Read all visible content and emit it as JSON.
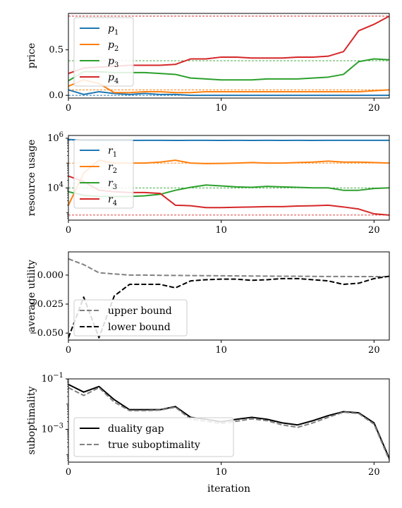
{
  "colors": {
    "c1": "#1f77b4",
    "c2": "#ff7f0e",
    "c3": "#2ca02c",
    "c4": "#d62728",
    "gray": "#808080",
    "black": "#000000"
  },
  "xlabel": "iteration",
  "chart_data": [
    {
      "type": "line",
      "ylabel": "price",
      "xlim": [
        0,
        21
      ],
      "ylim": [
        -0.03,
        0.9
      ],
      "xticks": [
        0,
        10,
        20
      ],
      "xtick_labels": [
        "0",
        "10",
        "20"
      ],
      "yticks": [
        0.0,
        0.5
      ],
      "ytick_labels": [
        "0.0",
        "0.5"
      ],
      "legend": "upper-left",
      "series": [
        {
          "name": "p1",
          "legend_base": "p",
          "legend_sub": "1",
          "color": "#1f77b4",
          "x": [
            0,
            1,
            2,
            3,
            4,
            5,
            6,
            7,
            8,
            9,
            10,
            11,
            12,
            13,
            14,
            15,
            16,
            17,
            18,
            19,
            20,
            21
          ],
          "y": [
            0.06,
            0.01,
            0.04,
            0.02,
            0.01,
            0.02,
            0.01,
            0.01,
            0.0,
            0.0,
            0.0,
            0.0,
            0.0,
            0.0,
            0.0,
            0.0,
            0.0,
            0.0,
            0.0,
            0.0,
            0.0,
            0.0
          ],
          "ref": 0.0
        },
        {
          "name": "p2",
          "legend_base": "p",
          "legend_sub": "2",
          "color": "#ff7f0e",
          "x": [
            0,
            1,
            2,
            3,
            4,
            5,
            6,
            7,
            8,
            9,
            10,
            11,
            12,
            13,
            14,
            15,
            16,
            17,
            18,
            19,
            20,
            21
          ],
          "y": [
            0.1,
            0.17,
            0.13,
            0.03,
            0.03,
            0.04,
            0.04,
            0.03,
            0.03,
            0.04,
            0.04,
            0.04,
            0.04,
            0.04,
            0.04,
            0.04,
            0.04,
            0.04,
            0.04,
            0.04,
            0.05,
            0.06
          ],
          "ref": 0.06
        },
        {
          "name": "p3",
          "legend_base": "p",
          "legend_sub": "3",
          "color": "#2ca02c",
          "x": [
            0,
            1,
            2,
            3,
            4,
            5,
            6,
            7,
            8,
            9,
            10,
            11,
            12,
            13,
            14,
            15,
            16,
            17,
            18,
            19,
            20,
            21
          ],
          "y": [
            0.16,
            0.26,
            0.26,
            0.25,
            0.25,
            0.25,
            0.24,
            0.23,
            0.19,
            0.18,
            0.17,
            0.17,
            0.17,
            0.18,
            0.18,
            0.18,
            0.19,
            0.2,
            0.23,
            0.37,
            0.4,
            0.39
          ],
          "ref": 0.38
        },
        {
          "name": "p4",
          "legend_base": "p",
          "legend_sub": "4",
          "color": "#d62728",
          "x": [
            0,
            1,
            2,
            3,
            4,
            5,
            6,
            7,
            8,
            9,
            10,
            11,
            12,
            13,
            14,
            15,
            16,
            17,
            18,
            19,
            20,
            21
          ],
          "y": [
            0.24,
            0.3,
            0.31,
            0.32,
            0.33,
            0.33,
            0.33,
            0.34,
            0.4,
            0.4,
            0.42,
            0.42,
            0.41,
            0.41,
            0.41,
            0.42,
            0.42,
            0.43,
            0.48,
            0.71,
            0.78,
            0.87
          ],
          "ref": 0.87
        }
      ]
    },
    {
      "type": "line",
      "ylabel": "resource usage",
      "yscale": "log",
      "xlim": [
        0,
        21
      ],
      "ylim": [
        500,
        1300000
      ],
      "xticks": [
        0,
        10,
        20
      ],
      "xtick_labels": [
        "0",
        "10",
        "20"
      ],
      "yticks": [
        10000,
        1000000
      ],
      "ytick_base": "10",
      "ytick_exps": [
        "4",
        "6"
      ],
      "legend": "upper-left",
      "series": [
        {
          "name": "r1",
          "legend_base": "r",
          "legend_sub": "1",
          "color": "#1f77b4",
          "x": [
            0,
            1,
            2,
            3,
            4,
            5,
            6,
            7,
            8,
            9,
            10,
            11,
            12,
            13,
            14,
            15,
            16,
            17,
            18,
            19,
            20,
            21
          ],
          "y": [
            900000,
            830000,
            820000,
            830000,
            820000,
            830000,
            830000,
            820000,
            830000,
            830000,
            820000,
            830000,
            820000,
            830000,
            820000,
            830000,
            820000,
            830000,
            830000,
            830000,
            830000,
            830000
          ],
          "ref": 830000
        },
        {
          "name": "r2",
          "legend_base": "r",
          "legend_sub": "2",
          "color": "#ff7f0e",
          "x": [
            0,
            1,
            2,
            3,
            4,
            5,
            6,
            7,
            8,
            9,
            10,
            11,
            12,
            13,
            14,
            15,
            16,
            17,
            18,
            19,
            20,
            21
          ],
          "y": [
            2000,
            40000,
            130000,
            100000,
            100000,
            100000,
            110000,
            130000,
            100000,
            95000,
            97000,
            100000,
            105000,
            100000,
            100000,
            105000,
            110000,
            120000,
            110000,
            110000,
            105000,
            100000
          ],
          "ref": 100000
        },
        {
          "name": "r3",
          "legend_base": "r",
          "legend_sub": "3",
          "color": "#2ca02c",
          "x": [
            0,
            1,
            2,
            3,
            4,
            5,
            6,
            7,
            8,
            9,
            10,
            11,
            12,
            13,
            14,
            15,
            16,
            17,
            18,
            19,
            20,
            21
          ],
          "y": [
            7000,
            5000,
            4500,
            4500,
            4500,
            4800,
            5500,
            8000,
            10500,
            13000,
            12000,
            11000,
            10500,
            11500,
            11000,
            10500,
            10000,
            10000,
            8000,
            8000,
            9500,
            10000
          ],
          "ref": 10000
        },
        {
          "name": "r4",
          "legend_base": "r",
          "legend_sub": "4",
          "color": "#d62728",
          "x": [
            0,
            1,
            2,
            3,
            4,
            5,
            6,
            7,
            8,
            9,
            10,
            11,
            12,
            13,
            14,
            15,
            16,
            17,
            18,
            19,
            20,
            21
          ],
          "y": [
            30000,
            18000,
            8000,
            7000,
            6500,
            6500,
            6000,
            2000,
            1900,
            1600,
            1600,
            1650,
            1700,
            1750,
            1750,
            1850,
            1900,
            2000,
            1700,
            1400,
            900,
            800
          ],
          "ref": 800
        }
      ]
    },
    {
      "type": "line",
      "ylabel": "average utility",
      "xlim": [
        0,
        21
      ],
      "ylim": [
        -0.056,
        0.02
      ],
      "xticks": [
        0,
        10,
        20
      ],
      "xtick_labels": [
        "0",
        "10",
        "20"
      ],
      "yticks": [
        0.0,
        -0.025,
        -0.05
      ],
      "ytick_labels": [
        "0.000",
        "−0.025",
        "−0.050"
      ],
      "legend": "lower-left",
      "series": [
        {
          "name": "upper bound",
          "color": "#808080",
          "x": [
            0,
            1,
            2,
            3,
            4,
            5,
            6,
            7,
            8,
            9,
            10,
            11,
            12,
            13,
            14,
            15,
            16,
            17,
            18,
            19,
            20,
            21
          ],
          "y": [
            0.014,
            0.009,
            0.002,
            0.001,
            0.0,
            0.0,
            -0.0002,
            -0.0003,
            -0.0004,
            -0.0005,
            -0.0006,
            -0.0007,
            -0.0008,
            -0.0009,
            -0.001,
            -0.001,
            -0.0011,
            -0.0012,
            -0.0012,
            -0.0013,
            -0.0013,
            -0.0013
          ]
        },
        {
          "name": "lower bound",
          "color": "#000000",
          "x": [
            0,
            1,
            2,
            3,
            4,
            5,
            6,
            7,
            8,
            9,
            10,
            11,
            12,
            13,
            14,
            15,
            16,
            17,
            18,
            19,
            20,
            21
          ],
          "y": [
            -0.054,
            -0.019,
            -0.054,
            -0.018,
            -0.008,
            -0.008,
            -0.008,
            -0.011,
            -0.005,
            -0.004,
            -0.0035,
            -0.0035,
            -0.0045,
            -0.004,
            -0.003,
            -0.003,
            -0.004,
            -0.005,
            -0.008,
            -0.007,
            -0.003,
            -0.001
          ]
        }
      ]
    },
    {
      "type": "line",
      "ylabel": "suboptimality",
      "yscale": "log",
      "xlim": [
        0,
        21
      ],
      "ylim": [
        5e-05,
        0.1
      ],
      "xticks": [
        0,
        10,
        20
      ],
      "xtick_labels": [
        "0",
        "10",
        "20"
      ],
      "yticks": [
        0.001,
        0.1
      ],
      "ytick_base": "10",
      "ytick_exps": [
        "−3",
        "−1"
      ],
      "legend": "lower-left",
      "series": [
        {
          "name": "duality gap",
          "color": "#000000",
          "x": [
            0,
            1,
            2,
            3,
            4,
            5,
            6,
            7,
            8,
            9,
            10,
            11,
            12,
            13,
            14,
            15,
            16,
            17,
            18,
            19,
            20,
            21
          ],
          "y": [
            0.06,
            0.03,
            0.05,
            0.015,
            0.006,
            0.006,
            0.006,
            0.008,
            0.003,
            0.0025,
            0.002,
            0.0025,
            0.003,
            0.0025,
            0.0018,
            0.0015,
            0.0022,
            0.0035,
            0.005,
            0.0045,
            0.0018,
            7e-05
          ]
        },
        {
          "name": "true suboptimality",
          "color": "#808080",
          "x": [
            0,
            1,
            2,
            3,
            4,
            5,
            6,
            7,
            8,
            9,
            10,
            11,
            12,
            13,
            14,
            15,
            16,
            17,
            18,
            19,
            20,
            21
          ],
          "y": [
            0.045,
            0.022,
            0.045,
            0.012,
            0.0055,
            0.0055,
            0.0058,
            0.0075,
            0.0025,
            0.0021,
            0.0017,
            0.0021,
            0.0026,
            0.0022,
            0.0015,
            0.0012,
            0.0018,
            0.003,
            0.0048,
            0.0042,
            0.0016,
            6e-05
          ]
        }
      ]
    }
  ]
}
